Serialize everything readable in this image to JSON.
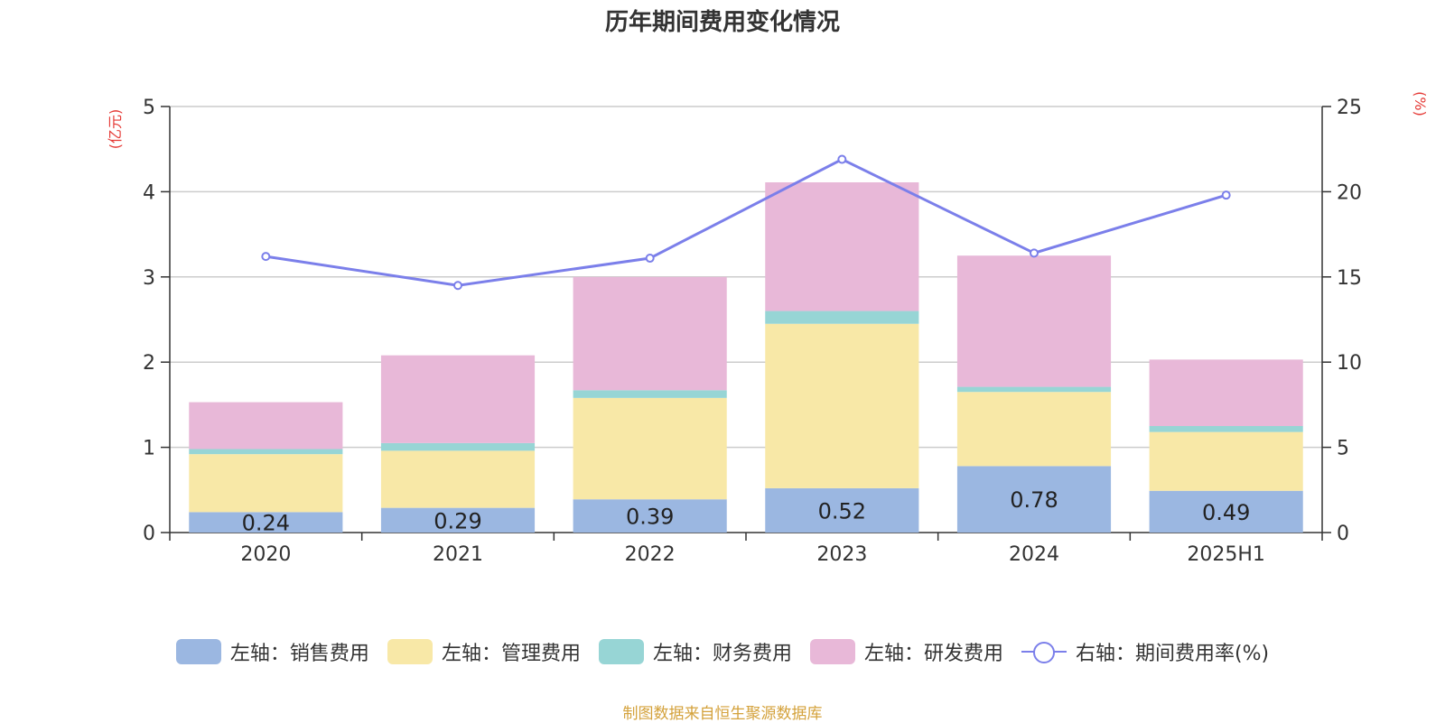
{
  "title": "历年期间费用变化情况",
  "source": "制图数据来自恒生聚源数据库",
  "chart_data": {
    "type": "bar",
    "stacked": true,
    "categories": [
      "2020",
      "2021",
      "2022",
      "2023",
      "2024",
      "2025H1"
    ],
    "left_axis": {
      "unit_label": "(亿元)",
      "ylim": [
        0,
        5
      ],
      "ticks": [
        "0",
        "1",
        "2",
        "3",
        "4",
        "5"
      ]
    },
    "right_axis": {
      "unit_label": "(%)",
      "ylim": [
        0,
        25
      ],
      "ticks": [
        "0",
        "5",
        "10",
        "15",
        "20",
        "25"
      ]
    },
    "grid": true,
    "legend_position": "bottom",
    "series": [
      {
        "name": "左轴：销售费用",
        "type": "bar",
        "axis": "left",
        "color": "#9BB7E1",
        "values": [
          0.24,
          0.29,
          0.39,
          0.52,
          0.78,
          0.49
        ],
        "labels": [
          "0.24",
          "0.29",
          "0.39",
          "0.52",
          "0.78",
          "0.49"
        ]
      },
      {
        "name": "左轴：管理费用",
        "type": "bar",
        "axis": "left",
        "color": "#F8E8A7",
        "values": [
          0.68,
          0.67,
          1.19,
          1.93,
          0.87,
          0.69
        ]
      },
      {
        "name": "左轴：财务费用",
        "type": "bar",
        "axis": "left",
        "color": "#97D5D5",
        "values": [
          0.06,
          0.09,
          0.09,
          0.15,
          0.06,
          0.07
        ]
      },
      {
        "name": "左轴：研发费用",
        "type": "bar",
        "axis": "left",
        "color": "#E8B8D8",
        "values": [
          0.55,
          1.03,
          1.33,
          1.51,
          1.54,
          0.78
        ]
      },
      {
        "name": "右轴：期间费用率(%)",
        "type": "line",
        "axis": "right",
        "color": "#7B7FEA",
        "values": [
          16.2,
          14.5,
          16.1,
          21.9,
          16.4,
          19.8
        ]
      }
    ]
  }
}
